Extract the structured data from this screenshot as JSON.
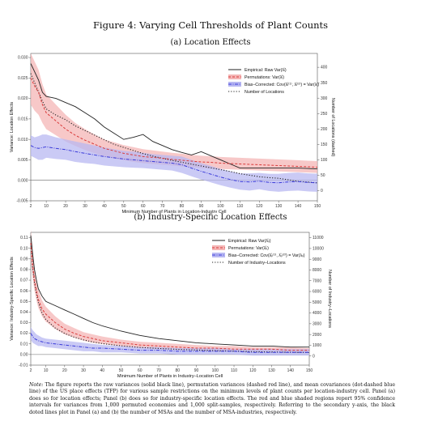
{
  "figure_title": "Figure 4:  Varying Cell Thresholds of Plant Counts",
  "panels": {
    "a": {
      "title": "(a) Location Effects"
    },
    "b": {
      "title": "(b) Industry-Specific Location Effects"
    }
  },
  "note": {
    "label": "Note:",
    "text": "The figure reports the raw variances (solid black line), permutation variances (dashed red line), and mean covariances (dot-dashed blue line) of the US place effects (TFP) for various sample restrictions on the minimum levels of plant counts per location-industry cell. Panel (a) does so for location effects; Panel (b) does so for industry-specific location effects. The red and blue shaded regions report 95% confidence intervals for variances from 1,000 permuted economies and 1,000 split-samples, respectively. Referring to the secondary y-axis, the black doted lines plot in Panel (a) and (b) the number of MSAs and the number of MSA-industries, respectively."
  },
  "colors": {
    "raw": "#222222",
    "perm": "#d93a3a",
    "perm_band": "#f4b5b5",
    "bias": "#3a3ad9",
    "bias_band": "#b8b8f2",
    "count": "#222222"
  },
  "chart_data": [
    {
      "type": "line",
      "xlabel": "Minimum Number of Plants in Location-Industry Cell",
      "ylabel": "Variance: Location Effects",
      "y2label": "Number of Locations (dashed)",
      "x_ticks": [
        "2",
        "10",
        "20",
        "30",
        "40",
        "50",
        "60",
        "70",
        "80",
        "90",
        "100",
        "110",
        "120",
        "130",
        "140",
        "150"
      ],
      "y_ticks": [
        "-0.005",
        "0.000",
        "0.005",
        "0.010",
        "0.015",
        "0.020",
        "0.025",
        "0.030"
      ],
      "y2_ticks": [
        "0",
        "50",
        "100",
        "150",
        "200",
        "250",
        "300",
        "350",
        "400"
      ],
      "xlim": [
        2,
        150
      ],
      "ylim": [
        -0.005,
        0.031
      ],
      "y2lim": [
        -33,
        445
      ],
      "legend_position": "top-right",
      "legend": [
        "Empirical: Raw Var(λ̂ₗ)",
        "Permutations: Var(λ̂ₗ)",
        "Bias–Corrected: Cov(λ̂ₗ⁽¹⁾, λ̂ₗ⁽²⁾) = Var(λₗ)",
        "Number of Locations"
      ],
      "x": [
        2,
        4,
        6,
        8,
        10,
        15,
        20,
        25,
        30,
        35,
        40,
        45,
        50,
        55,
        60,
        65,
        70,
        75,
        80,
        85,
        90,
        95,
        100,
        105,
        110,
        115,
        120,
        125,
        130,
        135,
        140,
        145,
        150
      ],
      "series": [
        {
          "key": "raw",
          "values": [
            0.0285,
            0.0265,
            0.0245,
            0.0215,
            0.0205,
            0.02,
            0.019,
            0.018,
            0.0165,
            0.015,
            0.013,
            0.0115,
            0.01,
            0.0105,
            0.0112,
            0.0095,
            0.0085,
            0.0075,
            0.0068,
            0.0062,
            0.007,
            0.006,
            0.005,
            0.004,
            0.003,
            0.003,
            0.003,
            0.003,
            0.003,
            0.003,
            0.003,
            0.0029,
            0.0028
          ]
        },
        {
          "key": "perm",
          "values": [
            0.025,
            0.023,
            0.0215,
            0.0185,
            0.0165,
            0.0145,
            0.0125,
            0.011,
            0.0098,
            0.0088,
            0.0078,
            0.0072,
            0.0066,
            0.0062,
            0.0058,
            0.0056,
            0.0054,
            0.0051,
            0.0049,
            0.0047,
            0.0045,
            0.0044,
            0.0042,
            0.0041,
            0.004,
            0.0039,
            0.0038,
            0.0037,
            0.0036,
            0.0035,
            0.0034,
            0.0033,
            0.0032
          ]
        },
        {
          "key": "perm_lo",
          "values": [
            0.0185,
            0.017,
            0.016,
            0.014,
            0.0125,
            0.011,
            0.0095,
            0.0084,
            0.0074,
            0.0066,
            0.0058,
            0.0053,
            0.0049,
            0.0045,
            0.0042,
            0.004,
            0.0038,
            0.0036,
            0.0034,
            0.0032,
            0.003,
            0.0029,
            0.0028,
            0.0027,
            0.0026,
            0.0025,
            0.0024,
            0.0023,
            0.0022,
            0.0021,
            0.002,
            0.0019,
            0.0018
          ]
        },
        {
          "key": "perm_hi",
          "values": [
            0.031,
            0.029,
            0.027,
            0.0235,
            0.021,
            0.0185,
            0.016,
            0.014,
            0.0125,
            0.0112,
            0.01,
            0.0093,
            0.0086,
            0.0081,
            0.0076,
            0.0073,
            0.007,
            0.0067,
            0.0065,
            0.0062,
            0.006,
            0.0059,
            0.0057,
            0.0056,
            0.0055,
            0.0054,
            0.0053,
            0.0052,
            0.0051,
            0.005,
            0.0049,
            0.0048,
            0.0047
          ]
        },
        {
          "key": "bias",
          "values": [
            0.0085,
            0.008,
            0.0078,
            0.008,
            0.0082,
            0.0078,
            0.0075,
            0.007,
            0.0066,
            0.0062,
            0.0058,
            0.0055,
            0.0052,
            0.005,
            0.0048,
            0.0046,
            0.0044,
            0.0042,
            0.0038,
            0.003,
            0.0022,
            0.0015,
            0.0008,
            0.0002,
            -0.0003,
            -0.0004,
            -0.0002,
            -0.0005,
            -0.0006,
            -0.0004,
            -0.0003,
            -0.0005,
            -0.0006
          ]
        },
        {
          "key": "bias_lo",
          "values": [
            0.006,
            0.0055,
            0.005,
            0.005,
            0.0055,
            0.0052,
            0.005,
            0.0045,
            0.0042,
            0.004,
            0.0036,
            0.0034,
            0.0032,
            0.0031,
            0.003,
            0.0028,
            0.0026,
            0.0024,
            0.0018,
            0.001,
            0.0002,
            -0.0005,
            -0.0012,
            -0.0018,
            -0.0023,
            -0.0025,
            -0.0022,
            -0.0026,
            -0.0028,
            -0.0026,
            -0.0025,
            -0.0027,
            -0.0028
          ]
        },
        {
          "key": "bias_hi",
          "values": [
            0.011,
            0.0105,
            0.0108,
            0.0112,
            0.0112,
            0.0105,
            0.01,
            0.0095,
            0.009,
            0.0085,
            0.008,
            0.0076,
            0.0072,
            0.007,
            0.0067,
            0.0064,
            0.0062,
            0.006,
            0.0058,
            0.005,
            0.0042,
            0.0035,
            0.0028,
            0.0022,
            0.0017,
            0.0017,
            0.0018,
            0.0016,
            0.0016,
            0.0018,
            0.0019,
            0.0017,
            0.0016
          ]
        },
        {
          "key": "count",
          "axis": "y2",
          "values": [
            380,
            350,
            320,
            290,
            265,
            245,
            230,
            210,
            195,
            180,
            165,
            150,
            140,
            130,
            120,
            112,
            105,
            98,
            92,
            86,
            80,
            74,
            68,
            62,
            55,
            50,
            45,
            42,
            40,
            35,
            30,
            28,
            25
          ]
        }
      ]
    },
    {
      "type": "line",
      "xlabel": "Minimum Number of Plants in Industry–Location Cell",
      "ylabel": "Variance: Industry-Specific Location Effects",
      "y2label": "Number of Industry–Locations",
      "x_ticks": [
        "2",
        "10",
        "20",
        "30",
        "40",
        "50",
        "60",
        "70",
        "80",
        "90",
        "100",
        "110",
        "120",
        "130",
        "140",
        "150"
      ],
      "y_ticks": [
        "-0.01",
        "0.00",
        "0.01",
        "0.02",
        "0.03",
        "0.04",
        "0.05",
        "0.06",
        "0.07",
        "0.08",
        "0.09",
        "0.10",
        "0.11"
      ],
      "y2_ticks": [
        "0",
        "1000",
        "2000",
        "3000",
        "4000",
        "5000",
        "6000",
        "7000",
        "8000",
        "9000",
        "10000",
        "11000"
      ],
      "xlim": [
        2,
        150
      ],
      "ylim": [
        -0.01,
        0.115
      ],
      "y2lim": [
        -850,
        11500
      ],
      "legend_position": "top-right",
      "legend": [
        "Empirical: Raw Var(λ̂ᵢₗ)",
        "Permutations: Var(λ̂ᵢₗ)",
        "Bias–Corrected: Cov(λ̂ᵢₗ⁽¹⁾, λ̂ᵢₗ⁽²⁾) = Var(λᵢₗ)",
        "Number of Industry–Locations"
      ],
      "x": [
        2,
        3,
        4,
        5,
        6,
        8,
        10,
        15,
        20,
        25,
        30,
        35,
        40,
        50,
        60,
        70,
        80,
        90,
        100,
        110,
        120,
        130,
        140,
        150
      ],
      "series": [
        {
          "key": "raw",
          "values": [
            0.112,
            0.095,
            0.08,
            0.07,
            0.062,
            0.055,
            0.05,
            0.046,
            0.042,
            0.038,
            0.034,
            0.03,
            0.027,
            0.022,
            0.018,
            0.015,
            0.013,
            0.011,
            0.01,
            0.009,
            0.008,
            0.008,
            0.007,
            0.007
          ]
        },
        {
          "key": "perm",
          "values": [
            0.105,
            0.085,
            0.07,
            0.06,
            0.052,
            0.043,
            0.038,
            0.03,
            0.024,
            0.02,
            0.017,
            0.015,
            0.013,
            0.011,
            0.009,
            0.008,
            0.007,
            0.006,
            0.006,
            0.005,
            0.005,
            0.005,
            0.004,
            0.004
          ]
        },
        {
          "key": "perm_lo",
          "values": [
            0.088,
            0.072,
            0.06,
            0.051,
            0.044,
            0.036,
            0.031,
            0.024,
            0.019,
            0.016,
            0.013,
            0.011,
            0.01,
            0.008,
            0.006,
            0.005,
            0.004,
            0.004,
            0.003,
            0.003,
            0.003,
            0.003,
            0.002,
            0.002
          ]
        },
        {
          "key": "perm_hi",
          "values": [
            0.118,
            0.098,
            0.082,
            0.07,
            0.061,
            0.051,
            0.045,
            0.036,
            0.029,
            0.025,
            0.021,
            0.019,
            0.017,
            0.014,
            0.012,
            0.011,
            0.01,
            0.009,
            0.008,
            0.008,
            0.007,
            0.007,
            0.007,
            0.006
          ]
        },
        {
          "key": "bias",
          "values": [
            0.02,
            0.017,
            0.015,
            0.014,
            0.013,
            0.012,
            0.011,
            0.01,
            0.009,
            0.008,
            0.007,
            0.006,
            0.006,
            0.005,
            0.004,
            0.004,
            0.003,
            0.003,
            0.003,
            0.003,
            0.002,
            0.002,
            0.002,
            0.002
          ]
        },
        {
          "key": "bias_lo",
          "values": [
            0.014,
            0.011,
            0.01,
            0.009,
            0.008,
            0.008,
            0.007,
            0.006,
            0.005,
            0.004,
            0.003,
            0.003,
            0.002,
            0.002,
            0.001,
            0.001,
            0.0,
            0.0,
            0.0,
            0.0,
            -0.001,
            -0.001,
            -0.001,
            -0.001
          ]
        },
        {
          "key": "bias_hi",
          "values": [
            0.026,
            0.023,
            0.021,
            0.019,
            0.018,
            0.016,
            0.015,
            0.014,
            0.013,
            0.012,
            0.011,
            0.01,
            0.009,
            0.008,
            0.007,
            0.007,
            0.006,
            0.006,
            0.006,
            0.005,
            0.005,
            0.005,
            0.005,
            0.005
          ]
        },
        {
          "key": "count",
          "axis": "y2",
          "values": [
            10500,
            8200,
            6800,
            5800,
            5000,
            4000,
            3400,
            2600,
            2100,
            1750,
            1500,
            1300,
            1150,
            950,
            800,
            700,
            620,
            560,
            500,
            450,
            410,
            380,
            350,
            320
          ]
        }
      ]
    }
  ]
}
